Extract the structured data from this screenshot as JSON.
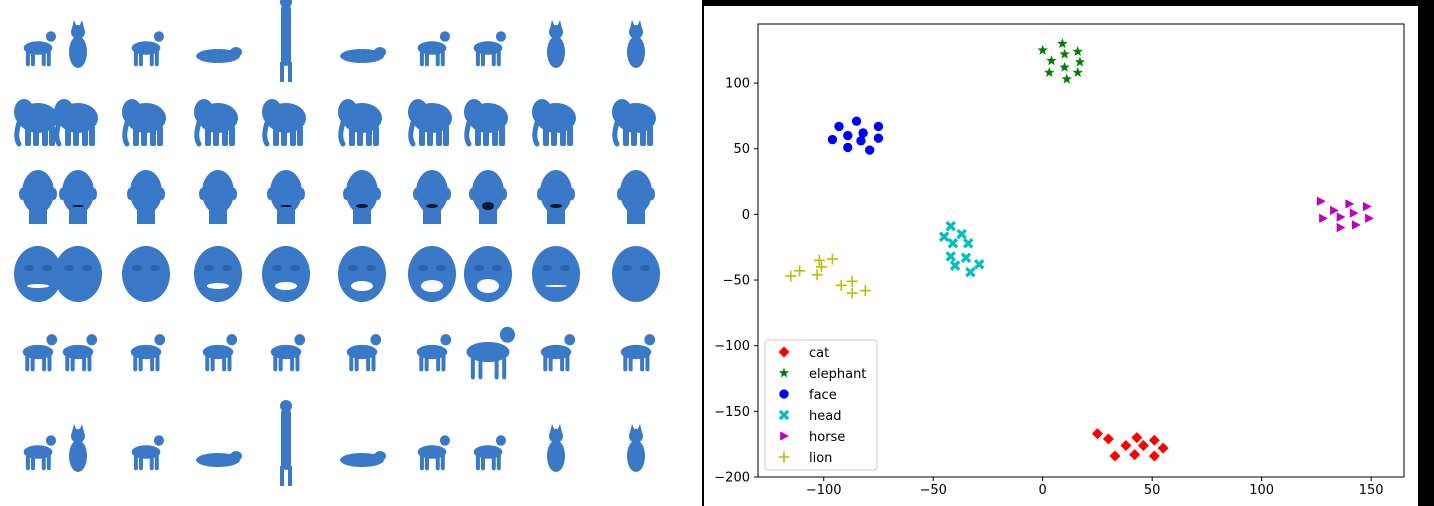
{
  "gallery": {
    "rows": [
      {
        "category": "cat",
        "count": 10
      },
      {
        "category": "elephant",
        "count": 10
      },
      {
        "category": "head",
        "count": 10
      },
      {
        "category": "face",
        "count": 10
      },
      {
        "category": "horse",
        "count": 10
      },
      {
        "category": "lion",
        "count": 10
      }
    ],
    "mesh_color": "#3a78c8"
  },
  "chart_data": {
    "type": "scatter",
    "title": "",
    "xlabel": "",
    "ylabel": "",
    "xlim": [
      -130,
      165
    ],
    "ylim": [
      -200,
      145
    ],
    "xticks": [
      -100,
      -50,
      0,
      50,
      100,
      150
    ],
    "yticks": [
      -200,
      -150,
      -100,
      -50,
      0,
      50,
      100
    ],
    "xtick_labels": [
      "−100",
      "−50",
      "0",
      "50",
      "100",
      "150"
    ],
    "ytick_labels": [
      "−200",
      "−150",
      "−100",
      "−50",
      "0",
      "50",
      "100"
    ],
    "grid": false,
    "legend": "lower-left",
    "series": [
      {
        "name": "cat",
        "color": "#ff0000",
        "marker": "diamond",
        "points": [
          [
            25,
            -167
          ],
          [
            30,
            -171
          ],
          [
            33,
            -184
          ],
          [
            38,
            -176
          ],
          [
            42,
            -183
          ],
          [
            43,
            -170
          ],
          [
            46,
            -176
          ],
          [
            51,
            -172
          ],
          [
            51,
            -184
          ],
          [
            55,
            -178
          ]
        ]
      },
      {
        "name": "elephant",
        "color": "#008000",
        "marker": "star",
        "points": [
          [
            0,
            125
          ],
          [
            3,
            108
          ],
          [
            4,
            117
          ],
          [
            9,
            130
          ],
          [
            10,
            112
          ],
          [
            10,
            122
          ],
          [
            11,
            103
          ],
          [
            16,
            124
          ],
          [
            17,
            116
          ],
          [
            16,
            108
          ]
        ]
      },
      {
        "name": "face",
        "color": "#0000ff",
        "marker": "circle",
        "points": [
          [
            -96,
            57
          ],
          [
            -93,
            67
          ],
          [
            -89,
            60
          ],
          [
            -89,
            51
          ],
          [
            -85,
            71
          ],
          [
            -83,
            56
          ],
          [
            -82,
            62
          ],
          [
            -79,
            49
          ],
          [
            -75,
            67
          ],
          [
            -75,
            58
          ]
        ]
      },
      {
        "name": "head",
        "color": "#00bfbf",
        "marker": "x",
        "points": [
          [
            -45,
            -17
          ],
          [
            -42,
            -9
          ],
          [
            -42,
            -32
          ],
          [
            -41,
            -22
          ],
          [
            -40,
            -39
          ],
          [
            -37,
            -15
          ],
          [
            -35,
            -33
          ],
          [
            -34,
            -22
          ],
          [
            -33,
            -44
          ],
          [
            -29,
            -38
          ]
        ]
      },
      {
        "name": "horse",
        "color": "#bf00bf",
        "marker": "triangle-right",
        "points": [
          [
            127,
            10
          ],
          [
            128,
            -3
          ],
          [
            133,
            3
          ],
          [
            136,
            -10
          ],
          [
            136,
            -2
          ],
          [
            140,
            8
          ],
          [
            142,
            1
          ],
          [
            143,
            -8
          ],
          [
            148,
            6
          ],
          [
            149,
            -3
          ]
        ]
      },
      {
        "name": "lion",
        "color": "#bfbf00",
        "marker": "plus",
        "points": [
          [
            -115,
            -47
          ],
          [
            -111,
            -43
          ],
          [
            -103,
            -46
          ],
          [
            -102,
            -35
          ],
          [
            -101,
            -40
          ],
          [
            -96,
            -34
          ],
          [
            -92,
            -54
          ],
          [
            -87,
            -60
          ],
          [
            -87,
            -51
          ],
          [
            -81,
            -58
          ]
        ]
      }
    ]
  }
}
